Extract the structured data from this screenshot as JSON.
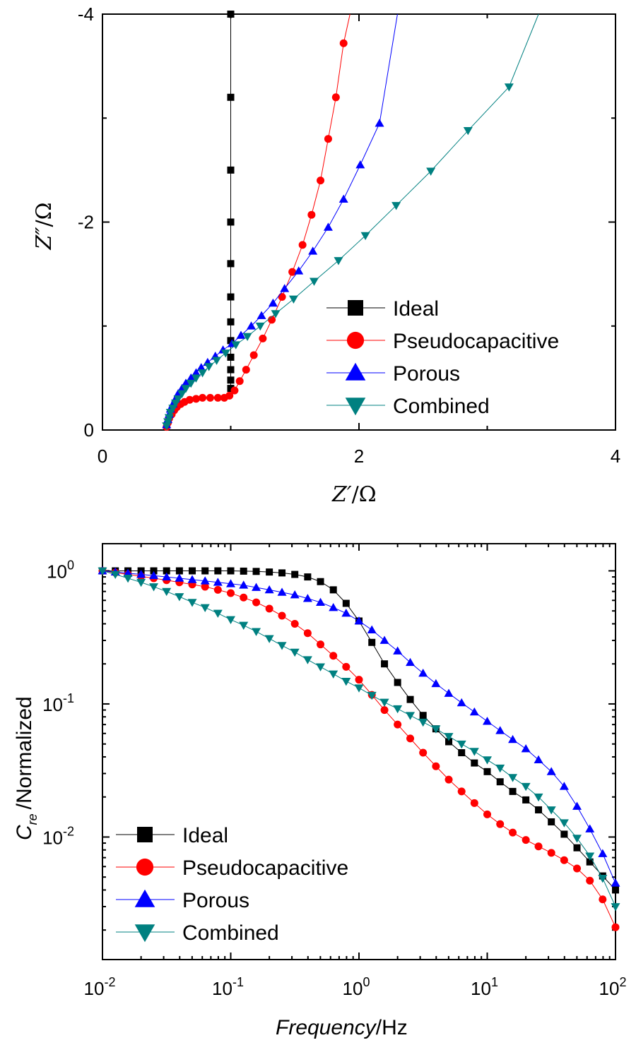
{
  "chart_data": [
    {
      "type": "scatter",
      "xlabel_main": "Z′",
      "xlabel_unit": "/Ω",
      "ylabel_main": "Z″",
      "ylabel_unit": "/Ω",
      "xlim": [
        0,
        4
      ],
      "ylim": [
        0,
        -4
      ],
      "xticks": [
        "0",
        "2",
        "4"
      ],
      "yticks": [
        "0",
        "-2",
        "-4"
      ],
      "legend_position": "lower-right",
      "series": [
        {
          "name": "Ideal",
          "color": "#000000",
          "marker": "square",
          "x": [
            1.0,
            1.0,
            1.0,
            1.0,
            1.0,
            1.0,
            1.0,
            1.0,
            1.0,
            1.0,
            1.0,
            1.0,
            1.0,
            1.0,
            1.0,
            1.0
          ],
          "y": [
            -0.4,
            -0.48,
            -0.58,
            -0.7,
            -0.86,
            -1.04,
            -1.28,
            -1.6,
            -2.0,
            -2.5,
            -3.2,
            -4.0,
            -4.0,
            -4.0,
            -4.0,
            -4.0
          ]
        },
        {
          "name": "Pseudocapacitive",
          "color": "#ff0000",
          "marker": "circle",
          "x": [
            0.5,
            0.51,
            0.52,
            0.54,
            0.56,
            0.58,
            0.61,
            0.64,
            0.68,
            0.73,
            0.78,
            0.84,
            0.9,
            0.95,
            0.99,
            1.03,
            1.07,
            1.12,
            1.18,
            1.25,
            1.32,
            1.4,
            1.48,
            1.56,
            1.63,
            1.7,
            1.76,
            1.82,
            1.88
          ],
          "y": [
            -0.03,
            -0.07,
            -0.11,
            -0.15,
            -0.19,
            -0.22,
            -0.25,
            -0.27,
            -0.29,
            -0.3,
            -0.31,
            -0.31,
            -0.31,
            -0.31,
            -0.33,
            -0.38,
            -0.47,
            -0.58,
            -0.72,
            -0.88,
            -1.06,
            -1.28,
            -1.52,
            -1.78,
            -2.07,
            -2.4,
            -2.8,
            -3.2,
            -3.72
          ]
        },
        {
          "name": "Porous",
          "color": "#0000ff",
          "marker": "triangle-up",
          "x": [
            0.5,
            0.51,
            0.52,
            0.53,
            0.55,
            0.57,
            0.59,
            0.62,
            0.65,
            0.69,
            0.73,
            0.77,
            0.82,
            0.88,
            0.94,
            1.01,
            1.08,
            1.16,
            1.24,
            1.33,
            1.42,
            1.53,
            1.64,
            1.76,
            1.88,
            2.01,
            2.16
          ],
          "y": [
            -0.05,
            -0.1,
            -0.15,
            -0.2,
            -0.25,
            -0.3,
            -0.35,
            -0.4,
            -0.45,
            -0.5,
            -0.55,
            -0.6,
            -0.65,
            -0.71,
            -0.77,
            -0.83,
            -0.91,
            -1.0,
            -1.1,
            -1.22,
            -1.36,
            -1.53,
            -1.72,
            -1.95,
            -2.22,
            -2.55,
            -2.95
          ],
          "note_x_tail": [],
          "x_tail": [],
          "y_tail": []
        },
        {
          "name": "Combined",
          "color": "#008080",
          "marker": "triangle-down",
          "x": [
            0.5,
            0.51,
            0.52,
            0.53,
            0.55,
            0.57,
            0.59,
            0.62,
            0.65,
            0.69,
            0.73,
            0.78,
            0.83,
            0.89,
            0.96,
            1.04,
            1.13,
            1.23,
            1.35,
            1.49,
            1.65,
            1.84,
            2.05,
            2.29,
            2.56,
            2.85,
            3.17
          ],
          "y": [
            -0.04,
            -0.08,
            -0.12,
            -0.17,
            -0.21,
            -0.26,
            -0.3,
            -0.35,
            -0.4,
            -0.45,
            -0.5,
            -0.55,
            -0.61,
            -0.67,
            -0.74,
            -0.82,
            -0.9,
            -1.0,
            -1.12,
            -1.26,
            -1.43,
            -1.63,
            -1.87,
            -2.16,
            -2.49,
            -2.88,
            -3.3
          ]
        }
      ]
    },
    {
      "type": "line",
      "xscale": "log",
      "yscale": "log",
      "xlabel_main": "Frequency",
      "xlabel_unit": "/Hz",
      "ylabel_main": "C",
      "ylabel_sub": "re",
      "ylabel_unit": "/Normalized",
      "xlim": [
        0.01,
        100
      ],
      "ylim": [
        0.0012,
        1.6
      ],
      "xticks": [
        {
          "base": "10",
          "exp": "-2",
          "value": 0.01
        },
        {
          "base": "10",
          "exp": "-1",
          "value": 0.1
        },
        {
          "base": "10",
          "exp": "0",
          "value": 1
        },
        {
          "base": "10",
          "exp": "1",
          "value": 10
        },
        {
          "base": "10",
          "exp": "2",
          "value": 100
        }
      ],
      "yticks": [
        {
          "base": "10",
          "exp": "-2",
          "value": 0.01
        },
        {
          "base": "10",
          "exp": "-1",
          "value": 0.1
        },
        {
          "base": "10",
          "exp": "0",
          "value": 1
        }
      ],
      "legend_position": "lower-left",
      "x": [
        0.01,
        0.0126,
        0.0158,
        0.02,
        0.0251,
        0.0316,
        0.0398,
        0.0501,
        0.0631,
        0.0794,
        0.1,
        0.126,
        0.158,
        0.2,
        0.251,
        0.316,
        0.398,
        0.501,
        0.631,
        0.794,
        1.0,
        1.26,
        1.58,
        2.0,
        2.51,
        3.16,
        3.98,
        5.01,
        6.31,
        7.94,
        10,
        12.6,
        15.8,
        20,
        25.1,
        31.6,
        39.8,
        50.1,
        63.1,
        79.4,
        100
      ],
      "series": [
        {
          "name": "Ideal",
          "color": "#000000",
          "marker": "square",
          "values": [
            1,
            1,
            1,
            1,
            1,
            1,
            1,
            1,
            1,
            1,
            1,
            0.995,
            0.99,
            0.98,
            0.965,
            0.94,
            0.9,
            0.83,
            0.72,
            0.57,
            0.42,
            0.29,
            0.2,
            0.145,
            0.108,
            0.082,
            0.065,
            0.052,
            0.043,
            0.036,
            0.031,
            0.026,
            0.022,
            0.019,
            0.016,
            0.013,
            0.0105,
            0.0083,
            0.0065,
            0.0051,
            0.004
          ]
        },
        {
          "name": "Pseudocapacitive",
          "color": "#ff0000",
          "marker": "circle",
          "values": [
            1,
            0.97,
            0.94,
            0.91,
            0.88,
            0.85,
            0.82,
            0.79,
            0.76,
            0.72,
            0.68,
            0.63,
            0.58,
            0.52,
            0.46,
            0.4,
            0.34,
            0.28,
            0.23,
            0.19,
            0.152,
            0.117,
            0.09,
            0.07,
            0.055,
            0.043,
            0.034,
            0.027,
            0.022,
            0.018,
            0.0148,
            0.0125,
            0.0108,
            0.0095,
            0.0085,
            0.0076,
            0.0067,
            0.0058,
            0.0047,
            0.0034,
            0.0021
          ]
        },
        {
          "name": "Porous",
          "color": "#0000ff",
          "marker": "triangle-up",
          "values": [
            1,
            0.98,
            0.96,
            0.94,
            0.92,
            0.9,
            0.88,
            0.86,
            0.84,
            0.82,
            0.8,
            0.78,
            0.75,
            0.72,
            0.69,
            0.66,
            0.62,
            0.58,
            0.53,
            0.48,
            0.42,
            0.36,
            0.3,
            0.25,
            0.205,
            0.17,
            0.142,
            0.12,
            0.102,
            0.087,
            0.074,
            0.063,
            0.054,
            0.046,
            0.038,
            0.031,
            0.024,
            0.017,
            0.0115,
            0.0075,
            0.0045
          ]
        },
        {
          "name": "Combined",
          "color": "#008080",
          "marker": "triangle-down",
          "values": [
            1,
            0.94,
            0.88,
            0.82,
            0.76,
            0.7,
            0.64,
            0.58,
            0.53,
            0.48,
            0.43,
            0.39,
            0.35,
            0.31,
            0.275,
            0.245,
            0.215,
            0.19,
            0.168,
            0.148,
            0.132,
            0.116,
            0.103,
            0.092,
            0.082,
            0.073,
            0.065,
            0.057,
            0.05,
            0.044,
            0.038,
            0.033,
            0.028,
            0.024,
            0.02,
            0.016,
            0.0128,
            0.0098,
            0.0072,
            0.0049,
            0.003
          ]
        }
      ]
    }
  ]
}
